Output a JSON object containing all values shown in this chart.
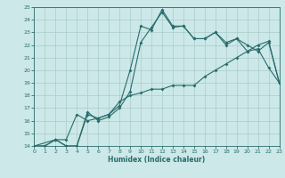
{
  "xlabel": "Humidex (Indice chaleur)",
  "bg_color": "#cce8e8",
  "grid_color": "#aacccc",
  "line_color": "#2a6b6b",
  "xlim": [
    0,
    23
  ],
  "ylim": [
    14,
    25
  ],
  "xticks": [
    0,
    1,
    2,
    3,
    4,
    5,
    6,
    7,
    8,
    9,
    10,
    11,
    12,
    13,
    14,
    15,
    16,
    17,
    18,
    19,
    20,
    21,
    22,
    23
  ],
  "yticks": [
    14,
    15,
    16,
    17,
    18,
    19,
    20,
    21,
    22,
    23,
    24,
    25
  ],
  "line1_x": [
    0,
    1,
    2,
    3,
    4,
    5,
    6,
    7,
    8,
    9,
    10,
    11,
    12,
    13,
    14,
    15,
    16,
    17,
    18,
    19,
    20,
    21,
    22,
    23
  ],
  "line1_y": [
    14,
    14,
    14.5,
    14,
    14,
    16.5,
    16.2,
    16.5,
    17.5,
    18,
    18.2,
    18.5,
    18.5,
    18.8,
    18.8,
    18.8,
    19.5,
    20,
    20.5,
    21,
    21.5,
    22,
    22.3,
    19
  ],
  "line2_x": [
    0,
    1,
    2,
    3,
    4,
    5,
    6,
    7,
    8,
    9,
    10,
    11,
    12,
    13,
    14,
    15,
    16,
    17,
    18,
    19,
    20,
    21,
    22,
    23
  ],
  "line2_y": [
    14,
    14,
    14.5,
    14.5,
    16.5,
    16,
    16.2,
    16.5,
    17.2,
    20.0,
    23.5,
    23.2,
    24.8,
    23.5,
    23.5,
    22.5,
    22.5,
    23,
    22.2,
    22.5,
    21.5,
    21.7,
    20.2,
    19.0
  ],
  "line3_x": [
    0,
    2,
    3,
    4,
    5,
    6,
    7,
    8,
    9,
    10,
    11,
    12,
    13,
    14,
    15,
    16,
    17,
    18,
    19,
    20,
    21,
    22,
    23
  ],
  "line3_y": [
    14,
    14.5,
    14,
    14,
    16.7,
    16,
    16.3,
    17,
    18.3,
    22.2,
    23.4,
    24.6,
    23.4,
    23.5,
    22.5,
    22.5,
    23,
    22,
    22.5,
    22,
    21.5,
    22.2,
    19.0
  ]
}
